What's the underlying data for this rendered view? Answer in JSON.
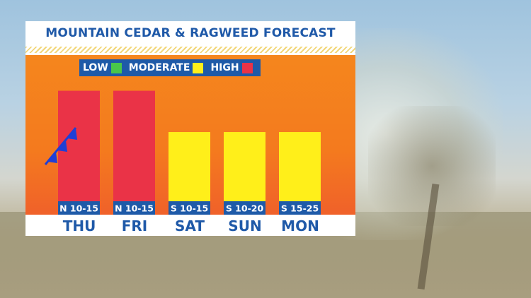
{
  "chart_data": {
    "type": "bar",
    "title": "MOUNTAIN CEDAR & RAGWEED FORECAST",
    "categories": [
      "THU",
      "FRI",
      "SAT",
      "SUN",
      "MON"
    ],
    "values": [
      3,
      3,
      2,
      2,
      2
    ],
    "levels": [
      "HIGH",
      "HIGH",
      "MODERATE",
      "MODERATE",
      "MODERATE"
    ],
    "wind": [
      "N 10-15",
      "N 10-15",
      "S 10-15",
      "S 10-20",
      "S 15-25"
    ],
    "ylim": [
      0,
      3.3
    ],
    "legend": [
      {
        "label": "LOW",
        "color": "#49c64a"
      },
      {
        "label": "MODERATE",
        "color": "#ffef1a"
      },
      {
        "label": "HIGH",
        "color": "#ea3347"
      }
    ],
    "level_colors": {
      "LOW": "#49c64a",
      "MODERATE": "#ffef1a",
      "HIGH": "#ea3347"
    },
    "front_symbol": "cold-front-icon",
    "front_color": "#1f3fd6"
  }
}
